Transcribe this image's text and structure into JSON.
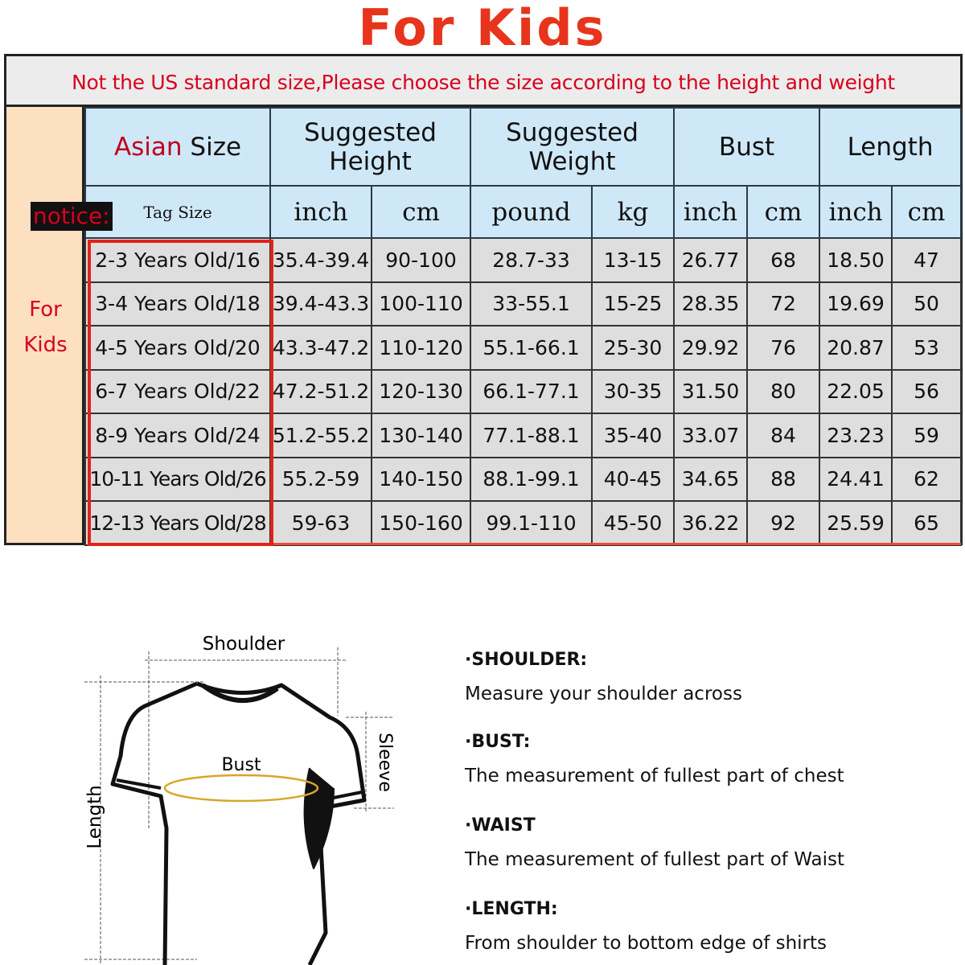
{
  "title": "For Kids",
  "notice_bar": "Not the US standard size,Please choose the size according to the height and weight",
  "side_label": [
    "For",
    "Kids"
  ],
  "notice_badge": "notice:",
  "header": {
    "asian_size_part1": "Asian",
    "asian_size_part2": " Size",
    "suggested_height": "Suggested Height",
    "suggested_weight": "Suggested Weight",
    "bust": "Bust",
    "length": "Length"
  },
  "subheader": [
    "Tag Size",
    "inch",
    "cm",
    "pound",
    "kg",
    "inch",
    "cm",
    "inch",
    "cm"
  ],
  "rows": [
    [
      "2-3 Years Old/16",
      "35.4-39.4",
      "90-100",
      "28.7-33",
      "13-15",
      "26.77",
      "68",
      "18.50",
      "47"
    ],
    [
      "3-4 Years Old/18",
      "39.4-43.3",
      "100-110",
      "33-55.1",
      "15-25",
      "28.35",
      "72",
      "19.69",
      "50"
    ],
    [
      "4-5 Years Old/20",
      "43.3-47.2",
      "110-120",
      "55.1-66.1",
      "25-30",
      "29.92",
      "76",
      "20.87",
      "53"
    ],
    [
      "6-7 Years Old/22",
      "47.2-51.2",
      "120-130",
      "66.1-77.1",
      "30-35",
      "31.50",
      "80",
      "22.05",
      "56"
    ],
    [
      "8-9 Years Old/24",
      "51.2-55.2",
      "130-140",
      "77.1-88.1",
      "35-40",
      "33.07",
      "84",
      "23.23",
      "59"
    ],
    [
      "10-11 Years Old/26",
      "55.2-59",
      "140-150",
      "88.1-99.1",
      "40-45",
      "34.65",
      "88",
      "24.41",
      "62"
    ],
    [
      "12-13 Years Old/28",
      "59-63",
      "150-160",
      "99.1-110",
      "45-50",
      "36.22",
      "92",
      "25.59",
      "65"
    ]
  ],
  "diagram": {
    "shoulder": "Shoulder",
    "bust": "Bust",
    "sleeve": "Sleeve",
    "length": "Length"
  },
  "descriptions": [
    {
      "heading": "·SHOULDER:",
      "text": "Measure your shoulder across"
    },
    {
      "heading": "·BUST:",
      "text": "The measurement of fullest part of chest"
    },
    {
      "heading": "·WAIST",
      "text": "The measurement of fullest part of Waist"
    },
    {
      "heading": "·LENGTH:",
      "text": "From shoulder to bottom edge of shirts"
    }
  ],
  "colors": {
    "title": "#e8341c",
    "notice": "#d8001c",
    "header_bg": "#cfe8f8",
    "side_bg": "#fde0c0",
    "cell_bg": "#dedede",
    "highlight_box": "#e2231a"
  }
}
